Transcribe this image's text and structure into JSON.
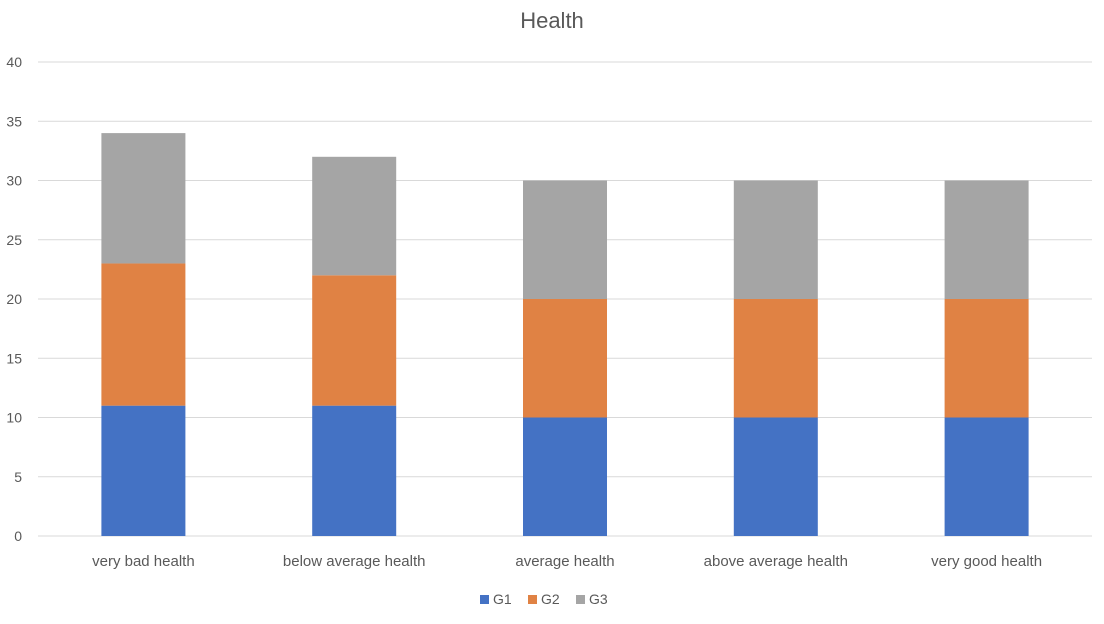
{
  "chart_data": {
    "type": "bar",
    "stacked": true,
    "title": "Health",
    "xlabel": "",
    "ylabel": "",
    "ylim": [
      0,
      40
    ],
    "yticks": [
      0,
      5,
      10,
      15,
      20,
      25,
      30,
      35,
      40
    ],
    "grid": true,
    "legend_position": "bottom",
    "categories": [
      "very bad health",
      "below average health",
      "average health",
      "above average health",
      "very good health"
    ],
    "series": [
      {
        "name": "G1",
        "color": "#4472C4",
        "values": [
          11,
          11,
          10,
          10,
          10
        ]
      },
      {
        "name": "G2",
        "color": "#E08244",
        "values": [
          12,
          11,
          10,
          10,
          10
        ]
      },
      {
        "name": "G3",
        "color": "#A5A5A5",
        "values": [
          11,
          10,
          10,
          10,
          10
        ]
      }
    ]
  }
}
